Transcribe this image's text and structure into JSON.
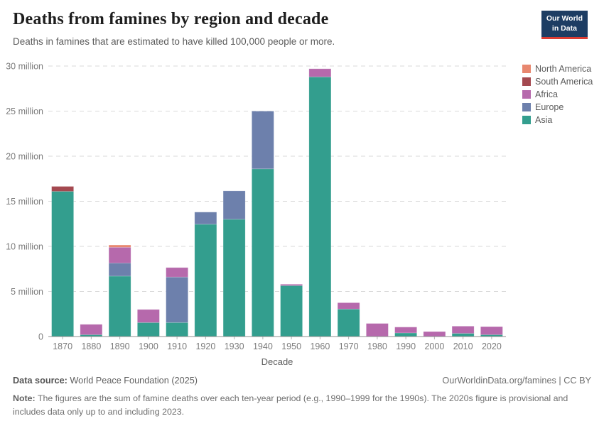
{
  "header": {
    "title": "Deaths from famines by region and decade",
    "subtitle": "Deaths in famines that are estimated to have killed 100,000 people or more.",
    "logo_line1": "Our World",
    "logo_line2": "in Data",
    "logo_bg_color": "#1d3d63",
    "logo_accent_color": "#dc3d33"
  },
  "chart_data": {
    "type": "bar",
    "stacked": true,
    "title": "Deaths from famines by region and decade",
    "xlabel": "Decade",
    "ylabel": "",
    "unit": "deaths (millions)",
    "categories": [
      "1870",
      "1880",
      "1890",
      "1900",
      "1910",
      "1920",
      "1930",
      "1940",
      "1950",
      "1960",
      "1970",
      "1980",
      "1990",
      "2000",
      "2010",
      "2020"
    ],
    "series": [
      {
        "name": "Asia",
        "color": "#339e8e",
        "values": [
          16.1,
          0.2,
          6.7,
          1.55,
          1.55,
          12.45,
          13.0,
          18.6,
          5.65,
          28.8,
          3.05,
          0,
          0.4,
          0,
          0.35,
          0.2
        ]
      },
      {
        "name": "Europe",
        "color": "#6d80ac",
        "values": [
          0,
          0,
          1.45,
          0,
          5.05,
          1.35,
          3.15,
          6.4,
          0,
          0,
          0,
          0,
          0,
          0,
          0,
          0
        ]
      },
      {
        "name": "Africa",
        "color": "#b669ac",
        "values": [
          0,
          1.15,
          1.75,
          1.45,
          1.05,
          0,
          0,
          0,
          0.15,
          0.9,
          0.7,
          1.45,
          0.65,
          0.55,
          0.8,
          0.9
        ]
      },
      {
        "name": "South America",
        "color": "#a44950",
        "values": [
          0.55,
          0,
          0,
          0,
          0,
          0,
          0,
          0,
          0,
          0,
          0,
          0,
          0,
          0,
          0,
          0
        ]
      },
      {
        "name": "North America",
        "color": "#e8876f",
        "values": [
          0,
          0,
          0.25,
          0,
          0,
          0,
          0,
          0,
          0,
          0,
          0,
          0,
          0,
          0,
          0,
          0
        ]
      }
    ],
    "totals_by_decade": [
      16.65,
      1.35,
      10.15,
      3.0,
      7.65,
      13.8,
      16.15,
      25.0,
      5.8,
      29.7,
      3.75,
      1.45,
      1.05,
      0.55,
      1.15,
      1.1
    ],
    "ylim": [
      0,
      30
    ],
    "y_ticks": [
      0,
      5,
      10,
      15,
      20,
      25,
      30
    ],
    "y_tick_labels": [
      "0",
      "5 million",
      "10 million",
      "15 million",
      "20 million",
      "25 million",
      "30 million"
    ],
    "grid": true,
    "legend_position": "right",
    "legend_order_top_to_bottom": [
      "North America",
      "South America",
      "Africa",
      "Europe",
      "Asia"
    ]
  },
  "footer": {
    "datasource_label": "Data source:",
    "datasource_value": " World Peace Foundation (2025)",
    "link": "OurWorldinData.org/famines | CC BY",
    "note_label": "Note:",
    "note_text": " The figures are the sum of famine deaths over each ten-year period (e.g., 1990–1999 for the 1990s). The 2020s figure is provisional and includes data only up to and including 2023."
  },
  "style_colors": {
    "gridline": "#d9d9d9",
    "axis_line": "#8f8f8f",
    "tick_mark": "#b3b3b3",
    "tick_label": "#7c7c7c",
    "axis_title": "#5e5e5e"
  }
}
